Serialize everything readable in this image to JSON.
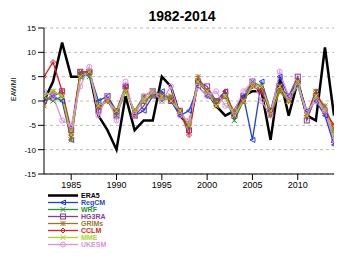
{
  "chart_data": {
    "type": "line",
    "title": "1982-2014",
    "y_label": "EAWMI",
    "x": [
      1982,
      1983,
      1984,
      1985,
      1986,
      1987,
      1988,
      1989,
      1990,
      1991,
      1992,
      1993,
      1994,
      1995,
      1996,
      1997,
      1998,
      1999,
      2000,
      2001,
      2002,
      2003,
      2004,
      2005,
      2006,
      2007,
      2008,
      2009,
      2010,
      2011,
      2012,
      2013,
      2014
    ],
    "xlim": [
      1982,
      2014
    ],
    "xticks": [
      1985,
      1990,
      1995,
      2000,
      2005,
      2010
    ],
    "ylim": [
      -15,
      15
    ],
    "yticks": [
      -15,
      -10,
      -5,
      0,
      5,
      10,
      15
    ],
    "grid": true,
    "series": [
      {
        "name": "ERA5",
        "color": "#000000",
        "marker": "none",
        "values": [
          0,
          4,
          12,
          5,
          5,
          6,
          -3,
          -6,
          -10,
          1,
          -6,
          -4,
          -4,
          5,
          3,
          -3,
          -5,
          4,
          2,
          -1,
          -3,
          -2,
          1,
          2,
          2,
          -8,
          5,
          -3,
          4,
          -3,
          -4,
          11,
          -3
        ]
      },
      {
        "name": "RegCM",
        "color": "#1f3fe0",
        "marker": "triangle",
        "values": [
          0,
          1,
          0,
          -8,
          5,
          6,
          0,
          1,
          -2,
          3,
          -3,
          -2,
          1,
          2,
          0,
          -3,
          -2,
          3,
          1,
          0,
          2,
          -3,
          1,
          -8,
          4,
          -2,
          5,
          1,
          4,
          -2,
          0,
          -3,
          -9
        ]
      },
      {
        "name": "WRF",
        "color": "#1a9a2a",
        "marker": "cross",
        "values": [
          1,
          0,
          1,
          -7,
          6,
          5,
          -1,
          0,
          -3,
          2,
          -2,
          1,
          2,
          0,
          1,
          -2,
          -5,
          4,
          2,
          -1,
          1,
          -4,
          0,
          4,
          3,
          -3,
          2,
          0,
          3,
          -3,
          2,
          -2,
          -7
        ]
      },
      {
        "name": "HG3RA",
        "color": "#8a3a9a",
        "marker": "square",
        "values": [
          0,
          1,
          2,
          -6,
          6,
          6,
          -2,
          1,
          -3,
          3,
          -3,
          -1,
          2,
          1,
          0,
          -2,
          -6,
          4,
          3,
          0,
          1,
          -3,
          1,
          4,
          2,
          -2,
          3,
          1,
          5,
          -4,
          1,
          -2,
          -8
        ]
      },
      {
        "name": "GRIMs",
        "color": "#9a7a20",
        "marker": "star",
        "values": [
          -1,
          2,
          1,
          -8,
          5,
          6,
          -1,
          0,
          -2,
          2,
          -2,
          0,
          1,
          1,
          1,
          -2,
          -5,
          5,
          2,
          0,
          1,
          -2,
          0,
          3,
          3,
          -3,
          2,
          0,
          4,
          -3,
          1,
          -1,
          -6
        ]
      },
      {
        "name": "CCLM",
        "color": "#e02020",
        "marker": "diamond",
        "values": [
          5,
          8,
          2,
          -7,
          6,
          6,
          -1,
          0,
          -2,
          3,
          -3,
          1,
          2,
          1,
          0,
          -2,
          -7,
          4,
          2,
          -1,
          2,
          -3,
          0,
          3,
          2,
          -2,
          3,
          0,
          4,
          -3,
          2,
          -2,
          -5
        ]
      },
      {
        "name": "MME",
        "color": "#a8d820",
        "marker": "cross",
        "values": [
          1,
          2,
          1,
          -7,
          5,
          6,
          -1,
          0,
          -2,
          2,
          -2,
          0,
          2,
          1,
          0,
          -2,
          -5,
          4,
          2,
          -1,
          1,
          -3,
          0,
          3,
          3,
          -2,
          3,
          0,
          4,
          -3,
          1,
          -2,
          -7
        ]
      },
      {
        "name": "UKESM",
        "color": "#e090e0",
        "marker": "circle",
        "values": [
          2,
          1,
          -4,
          -5,
          3,
          7,
          -3,
          1,
          -4,
          4,
          -3,
          1,
          2,
          0,
          3,
          -3,
          -4,
          3,
          1,
          2,
          -1,
          -2,
          2,
          4,
          0,
          -3,
          6,
          1,
          3,
          -2,
          0,
          -2,
          -8
        ]
      }
    ]
  }
}
